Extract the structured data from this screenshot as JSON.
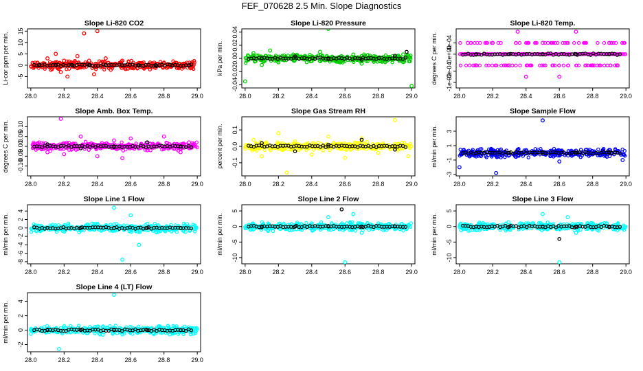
{
  "title": "FEF_070628  2.5 Min. Slope Diagnostics",
  "colors": {
    "black": "#000000",
    "red": "#ff0000",
    "green": "#00cc00",
    "magenta": "#ff00ff",
    "yellow": "#ffff00",
    "blue": "#0000ff",
    "cyan": "#00ffff"
  },
  "chart_data": [
    {
      "type": "scatter",
      "title": "Slope Li-820 CO2",
      "xlabel": "",
      "ylabel": "Li-cor ppm per min.",
      "xlim": [
        27.98,
        29.02
      ],
      "ylim": [
        -10,
        16
      ],
      "xticks": [
        "28.0",
        "28.2",
        "28.4",
        "28.6",
        "28.8",
        "29.0"
      ],
      "yticks": [
        -5,
        0,
        5,
        10,
        15
      ],
      "series": [
        {
          "name": "all",
          "color": "red",
          "points": [
            [
              28.05,
              0.5
            ],
            [
              28.1,
              3
            ],
            [
              28.12,
              -2
            ],
            [
              28.15,
              5
            ],
            [
              28.18,
              -3
            ],
            [
              28.2,
              2
            ],
            [
              28.22,
              -5
            ],
            [
              28.25,
              1
            ],
            [
              28.28,
              4
            ],
            [
              28.3,
              -1
            ],
            [
              28.32,
              14
            ],
            [
              28.35,
              2
            ],
            [
              28.38,
              -4
            ],
            [
              28.4,
              15
            ],
            [
              28.42,
              1
            ],
            [
              28.45,
              3
            ],
            [
              28.48,
              -2
            ],
            [
              28.5,
              0.5
            ],
            [
              28.55,
              2
            ],
            [
              28.6,
              -1
            ],
            [
              28.65,
              1
            ],
            [
              28.7,
              -0.5
            ],
            [
              28.8,
              1
            ],
            [
              28.9,
              -0.3
            ],
            [
              28.96,
              0.4
            ]
          ]
        },
        {
          "name": "selected",
          "color": "black",
          "points": [
            [
              28.05,
              0
            ],
            [
              28.15,
              0
            ],
            [
              28.25,
              0
            ],
            [
              28.35,
              0
            ],
            [
              28.45,
              0
            ],
            [
              28.55,
              0
            ],
            [
              28.65,
              0
            ],
            [
              28.75,
              0
            ],
            [
              28.85,
              0
            ],
            [
              28.95,
              0
            ]
          ]
        }
      ]
    },
    {
      "type": "scatter",
      "title": "Slope Li-820 Pressure",
      "xlabel": "",
      "ylabel": "kPa per min.",
      "xlim": [
        27.98,
        29.02
      ],
      "ylim": [
        -0.045,
        0.045
      ],
      "xticks": [
        "28.0",
        "28.2",
        "28.4",
        "28.6",
        "28.8",
        "29.0"
      ],
      "yticks": [
        "-0.04",
        "-0.02",
        "0.00",
        "0.02",
        "0.04"
      ],
      "series": [
        {
          "name": "all",
          "color": "green",
          "points": [
            [
              28.05,
              0.008
            ],
            [
              28.1,
              -0.01
            ],
            [
              28.15,
              0.012
            ],
            [
              28.2,
              -0.006
            ],
            [
              28.3,
              0.005
            ],
            [
              28.4,
              -0.004
            ],
            [
              28.45,
              0.01
            ],
            [
              28.5,
              0.045
            ],
            [
              28.55,
              -0.005
            ],
            [
              28.65,
              0.006
            ],
            [
              28.7,
              -0.008
            ],
            [
              28.75,
              0.004
            ],
            [
              28.85,
              -0.004
            ],
            [
              28.95,
              0.006
            ],
            [
              29.0,
              -0.042
            ],
            [
              28.0,
              -0.035
            ]
          ]
        },
        {
          "name": "selected",
          "color": "black",
          "points": [
            [
              28.1,
              0
            ],
            [
              28.3,
              0.003
            ],
            [
              28.5,
              0
            ],
            [
              28.7,
              -0.002
            ],
            [
              28.9,
              0.004
            ],
            [
              28.97,
              0.01
            ]
          ]
        }
      ]
    },
    {
      "type": "scatter",
      "title": "Slope Li-820 Temp.",
      "xlabel": "",
      "ylabel": "degrees C per min.",
      "xlim": [
        27.98,
        29.02
      ],
      "ylim": [
        -0.0012,
        0.0009
      ],
      "xticks": [
        "28.0",
        "28.2",
        "28.4",
        "28.6",
        "28.8",
        "29.0"
      ],
      "yticks": [
        "-1e-03",
        "-6e-04",
        "0e+00",
        "4e-04"
      ],
      "series": [
        {
          "name": "all",
          "color": "magenta",
          "points": [
            [
              28.05,
              0.0004
            ],
            [
              28.1,
              -0.0004
            ],
            [
              28.2,
              0.0004
            ],
            [
              28.3,
              -0.0004
            ],
            [
              28.35,
              0.0008
            ],
            [
              28.4,
              -0.0008
            ],
            [
              28.5,
              0.0004
            ],
            [
              28.6,
              -0.0008
            ],
            [
              28.7,
              0.0008
            ],
            [
              28.8,
              -0.0004
            ],
            [
              28.9,
              0.0004
            ],
            [
              28.95,
              -0.0004
            ]
          ]
        },
        {
          "name": "selected",
          "color": "black",
          "points": [
            [
              28.1,
              0
            ],
            [
              28.3,
              0
            ],
            [
              28.5,
              0
            ],
            [
              28.7,
              0
            ],
            [
              28.9,
              0
            ]
          ]
        }
      ]
    },
    {
      "type": "scatter",
      "title": "Slope Amb. Box Temp.",
      "xlabel": "",
      "ylabel": "degrees C per min.",
      "xlim": [
        27.98,
        29.02
      ],
      "ylim": [
        -0.15,
        0.15
      ],
      "xticks": [
        "28.0",
        "28.2",
        "28.4",
        "28.6",
        "28.8",
        "29.0"
      ],
      "yticks": [
        "-0.10",
        "-0.05",
        "0.00",
        "0.05",
        "0.10"
      ],
      "series": [
        {
          "name": "all",
          "color": "magenta",
          "points": [
            [
              28.05,
              0.02
            ],
            [
              28.1,
              -0.03
            ],
            [
              28.18,
              0.14
            ],
            [
              28.2,
              -0.04
            ],
            [
              28.3,
              0.05
            ],
            [
              28.4,
              -0.05
            ],
            [
              28.5,
              0.03
            ],
            [
              28.55,
              -0.06
            ],
            [
              28.6,
              0.04
            ],
            [
              28.7,
              -0.02
            ],
            [
              28.8,
              0.05
            ],
            [
              28.9,
              -0.03
            ],
            [
              28.95,
              0.02
            ]
          ]
        },
        {
          "name": "selected",
          "color": "black",
          "points": [
            [
              28.1,
              0.01
            ],
            [
              28.3,
              -0.01
            ],
            [
              28.5,
              0.0
            ],
            [
              28.7,
              0.02
            ],
            [
              28.9,
              0.0
            ]
          ]
        }
      ]
    },
    {
      "type": "scatter",
      "title": "Slope Gas Stream RH",
      "xlabel": "",
      "ylabel": "percent per min.",
      "xlim": [
        27.98,
        29.02
      ],
      "ylim": [
        -0.18,
        0.18
      ],
      "xticks": [
        "28.0",
        "28.2",
        "28.4",
        "28.6",
        "28.8",
        "29.0"
      ],
      "yticks": [
        "-0.1",
        "0.0",
        "0.1"
      ],
      "series": [
        {
          "name": "all",
          "color": "yellow",
          "points": [
            [
              28.05,
              0.04
            ],
            [
              28.1,
              -0.06
            ],
            [
              28.2,
              0.08
            ],
            [
              28.25,
              -0.16
            ],
            [
              28.3,
              0.03
            ],
            [
              28.4,
              -0.05
            ],
            [
              28.5,
              0.06
            ],
            [
              28.6,
              -0.07
            ],
            [
              28.7,
              0.05
            ],
            [
              28.8,
              -0.04
            ],
            [
              28.9,
              0.16
            ],
            [
              28.98,
              -0.06
            ]
          ]
        },
        {
          "name": "selected",
          "color": "black",
          "points": [
            [
              28.1,
              0.02
            ],
            [
              28.3,
              -0.03
            ],
            [
              28.5,
              0.01
            ],
            [
              28.7,
              0.04
            ],
            [
              28.9,
              -0.02
            ]
          ]
        }
      ]
    },
    {
      "type": "scatter",
      "title": "Slope Sample Flow",
      "xlabel": "",
      "ylabel": "ml/min per min.",
      "xlim": [
        27.98,
        29.02
      ],
      "ylim": [
        -3.2,
        5
      ],
      "xticks": [
        "28.0",
        "28.2",
        "28.4",
        "28.6",
        "28.8",
        "29.0"
      ],
      "yticks": [
        -3,
        -1,
        1,
        3
      ],
      "series": [
        {
          "name": "all",
          "color": "blue",
          "points": [
            [
              28.0,
              -2
            ],
            [
              28.1,
              -0.5
            ],
            [
              28.2,
              0.4
            ],
            [
              28.22,
              -2.8
            ],
            [
              28.3,
              -0.3
            ],
            [
              28.4,
              0.3
            ],
            [
              28.5,
              4.5
            ],
            [
              28.55,
              -0.4
            ],
            [
              28.6,
              -1.2
            ],
            [
              28.7,
              0.3
            ],
            [
              28.8,
              -0.2
            ],
            [
              28.9,
              0.4
            ],
            [
              28.98,
              -1
            ]
          ]
        },
        {
          "name": "selected",
          "color": "black",
          "points": [
            [
              28.1,
              0
            ],
            [
              28.3,
              0
            ],
            [
              28.5,
              0
            ],
            [
              28.7,
              0
            ],
            [
              28.9,
              0
            ]
          ]
        }
      ]
    },
    {
      "type": "scatter",
      "title": "Slope Line 1 Flow",
      "xlabel": "",
      "ylabel": "ml/min per min.",
      "xlim": [
        27.98,
        29.02
      ],
      "ylim": [
        -8.5,
        5.5
      ],
      "xticks": [
        "28.0",
        "28.2",
        "28.4",
        "28.6",
        "28.8",
        "29.0"
      ],
      "yticks": [
        -8,
        -6,
        -4,
        -2,
        0,
        2,
        4
      ],
      "series": [
        {
          "name": "all",
          "color": "cyan",
          "points": [
            [
              28.05,
              0.3
            ],
            [
              28.2,
              -0.3
            ],
            [
              28.4,
              1
            ],
            [
              28.5,
              4.8
            ],
            [
              28.55,
              -7.5
            ],
            [
              28.6,
              3
            ],
            [
              28.65,
              -4
            ],
            [
              28.7,
              1
            ],
            [
              28.8,
              -0.5
            ],
            [
              28.95,
              0.3
            ]
          ]
        },
        {
          "name": "selected",
          "color": "black",
          "points": [
            [
              28.1,
              0
            ],
            [
              28.3,
              0
            ],
            [
              28.5,
              0
            ],
            [
              28.7,
              0
            ],
            [
              28.9,
              0
            ]
          ]
        }
      ]
    },
    {
      "type": "scatter",
      "title": "Slope Line 2 Flow",
      "xlabel": "",
      "ylabel": "ml/min per min.",
      "xlim": [
        27.98,
        29.02
      ],
      "ylim": [
        -12,
        7
      ],
      "xticks": [
        "28.0",
        "28.2",
        "28.4",
        "28.6",
        "28.8",
        "29.0"
      ],
      "yticks": [
        -10,
        -5,
        0,
        5
      ],
      "series": [
        {
          "name": "all",
          "color": "cyan",
          "points": [
            [
              28.05,
              0.5
            ],
            [
              28.2,
              -0.5
            ],
            [
              28.4,
              1
            ],
            [
              28.5,
              3
            ],
            [
              28.6,
              -11.5
            ],
            [
              28.65,
              4
            ],
            [
              28.7,
              -2
            ],
            [
              28.8,
              1
            ],
            [
              28.95,
              -0.5
            ]
          ]
        },
        {
          "name": "selected",
          "color": "black",
          "points": [
            [
              28.1,
              0
            ],
            [
              28.3,
              0
            ],
            [
              28.5,
              0
            ],
            [
              28.58,
              5.5
            ],
            [
              28.7,
              0
            ],
            [
              28.9,
              0
            ]
          ]
        }
      ]
    },
    {
      "type": "scatter",
      "title": "Slope Line 3 Flow",
      "xlabel": "",
      "ylabel": "ml/min per min.",
      "xlim": [
        27.98,
        29.02
      ],
      "ylim": [
        -12,
        7
      ],
      "xticks": [
        "28.0",
        "28.2",
        "28.4",
        "28.6",
        "28.8",
        "29.0"
      ],
      "yticks": [
        -10,
        -5,
        0,
        5
      ],
      "series": [
        {
          "name": "all",
          "color": "cyan",
          "points": [
            [
              28.05,
              0.5
            ],
            [
              28.2,
              -0.5
            ],
            [
              28.4,
              1
            ],
            [
              28.5,
              4
            ],
            [
              28.6,
              -11.5
            ],
            [
              28.65,
              3
            ],
            [
              28.7,
              -2
            ],
            [
              28.8,
              1
            ],
            [
              28.95,
              -0.5
            ]
          ]
        },
        {
          "name": "selected",
          "color": "black",
          "points": [
            [
              28.1,
              0
            ],
            [
              28.3,
              0
            ],
            [
              28.5,
              0
            ],
            [
              28.6,
              -4
            ],
            [
              28.7,
              0
            ],
            [
              28.9,
              0
            ]
          ]
        }
      ]
    },
    {
      "type": "scatter",
      "title": "Slope Line 4 (LT) Flow",
      "xlabel": "",
      "ylabel": "ml/min per min.",
      "xlim": [
        27.98,
        29.02
      ],
      "ylim": [
        -3,
        5.2
      ],
      "xticks": [
        "28.0",
        "28.2",
        "28.4",
        "28.6",
        "28.8",
        "29.0"
      ],
      "yticks": [
        -2,
        0,
        2,
        4
      ],
      "series": [
        {
          "name": "all",
          "color": "cyan",
          "points": [
            [
              28.0,
              0
            ],
            [
              28.17,
              -2.6
            ],
            [
              28.5,
              4.9
            ],
            [
              28.85,
              -0.3
            ],
            [
              28.95,
              0
            ]
          ]
        },
        {
          "name": "selected",
          "color": "black",
          "points": [
            [
              28.1,
              0
            ],
            [
              28.3,
              0
            ],
            [
              28.5,
              0
            ],
            [
              28.7,
              0
            ],
            [
              28.9,
              0
            ]
          ]
        }
      ]
    }
  ]
}
